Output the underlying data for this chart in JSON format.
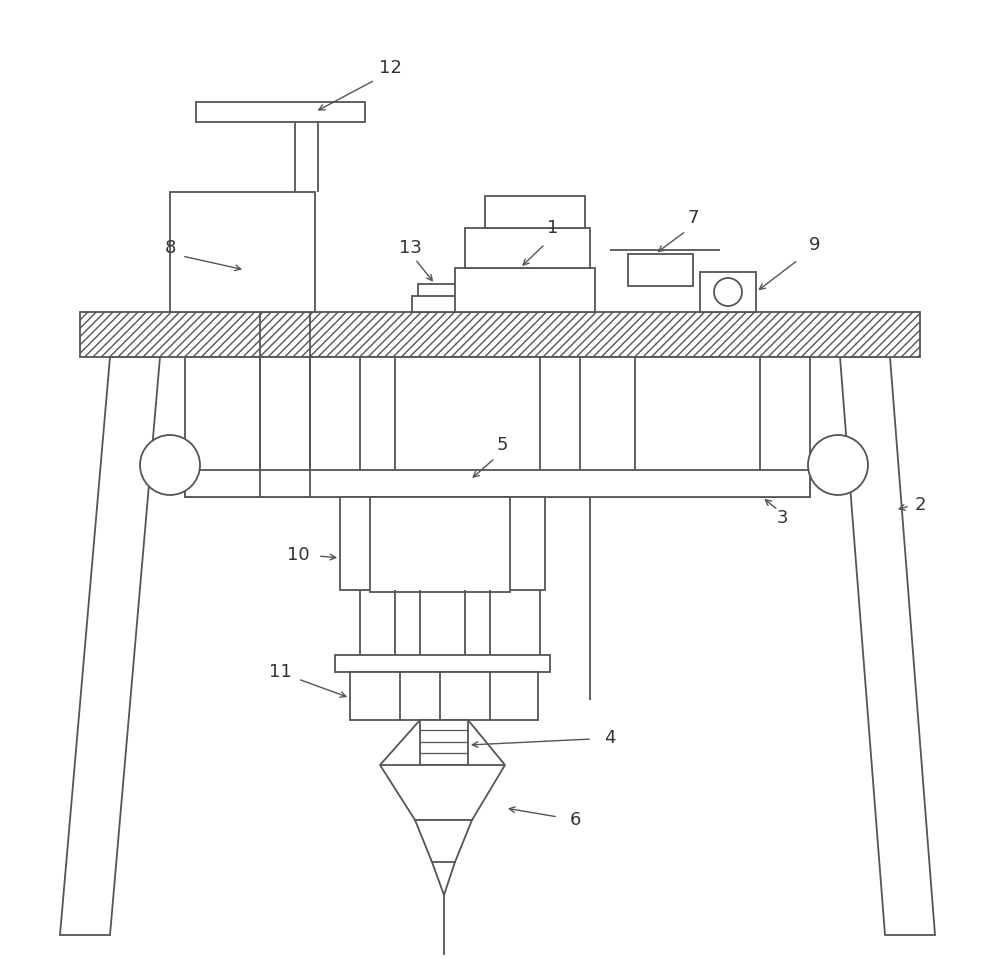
{
  "bg_color": "#ffffff",
  "line_color": "#555555",
  "label_color": "#333333",
  "figsize": [
    10.0,
    9.59
  ],
  "dpi": 100,
  "lw": 1.3,
  "label_fs": 13
}
